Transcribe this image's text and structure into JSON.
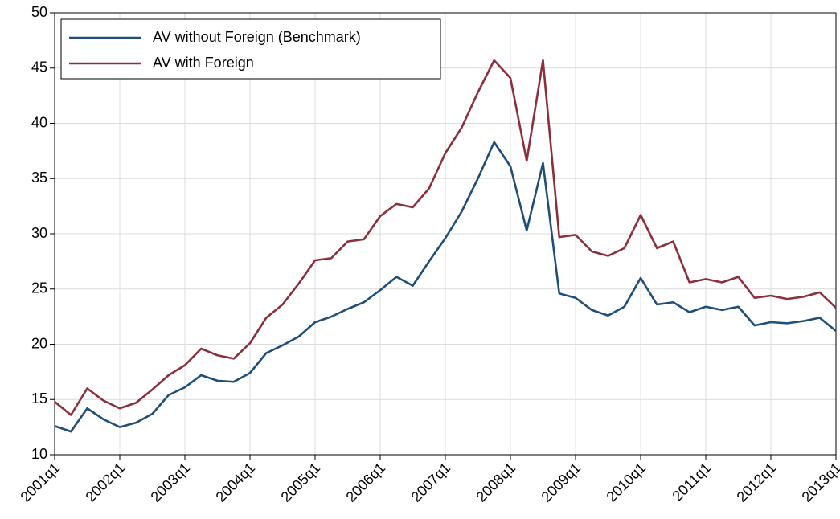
{
  "chart_data": {
    "type": "line",
    "categories": [
      "2001q1",
      null,
      null,
      null,
      "2002q1",
      null,
      null,
      null,
      "2003q1",
      null,
      null,
      null,
      "2004q1",
      null,
      null,
      null,
      "2005q1",
      null,
      null,
      null,
      "2006q1",
      null,
      null,
      null,
      "2007q1",
      null,
      null,
      null,
      "2008q1",
      null,
      null,
      null,
      "2009q1",
      null,
      null,
      null,
      "2010q1",
      null,
      null,
      null,
      "2011q1",
      null,
      null,
      null,
      "2012q1",
      null,
      null,
      null,
      "2013q1"
    ],
    "series": [
      {
        "name": "AV without Foreign (Benchmark)",
        "color": "#1f4e79",
        "values": [
          12.6,
          12.1,
          14.2,
          13.2,
          12.5,
          12.9,
          13.7,
          15.4,
          16.1,
          17.2,
          16.7,
          16.6,
          17.4,
          19.2,
          19.9,
          20.7,
          22.0,
          22.5,
          23.2,
          23.8,
          24.9,
          26.1,
          25.3,
          27.5,
          29.6,
          32.0,
          35.0,
          38.3,
          36.1,
          30.3,
          36.4,
          24.6,
          24.2,
          23.1,
          22.6,
          23.4,
          26.0,
          23.6,
          23.8,
          22.9,
          23.4,
          23.1,
          23.4,
          21.7,
          22.0,
          21.9,
          22.1,
          22.4,
          21.2
        ]
      },
      {
        "name": "AV with Foreign",
        "color": "#8b2f3c",
        "values": [
          14.8,
          13.6,
          16.0,
          14.9,
          14.2,
          14.7,
          15.9,
          17.2,
          18.1,
          19.6,
          19.0,
          18.7,
          20.1,
          22.4,
          23.6,
          25.5,
          27.6,
          27.8,
          29.3,
          29.5,
          31.6,
          32.7,
          32.4,
          34.1,
          37.3,
          39.6,
          42.8,
          45.7,
          44.1,
          36.6,
          45.7,
          29.7,
          29.9,
          28.4,
          28.0,
          28.7,
          31.7,
          28.7,
          29.3,
          25.6,
          25.9,
          25.6,
          26.1,
          24.2,
          24.4,
          24.1,
          24.3,
          24.7,
          23.3
        ]
      }
    ],
    "ylim": [
      10,
      50
    ],
    "yticks": [
      10,
      15,
      20,
      25,
      30,
      35,
      40,
      45,
      50
    ],
    "grid": true,
    "legend": "upper-left"
  }
}
